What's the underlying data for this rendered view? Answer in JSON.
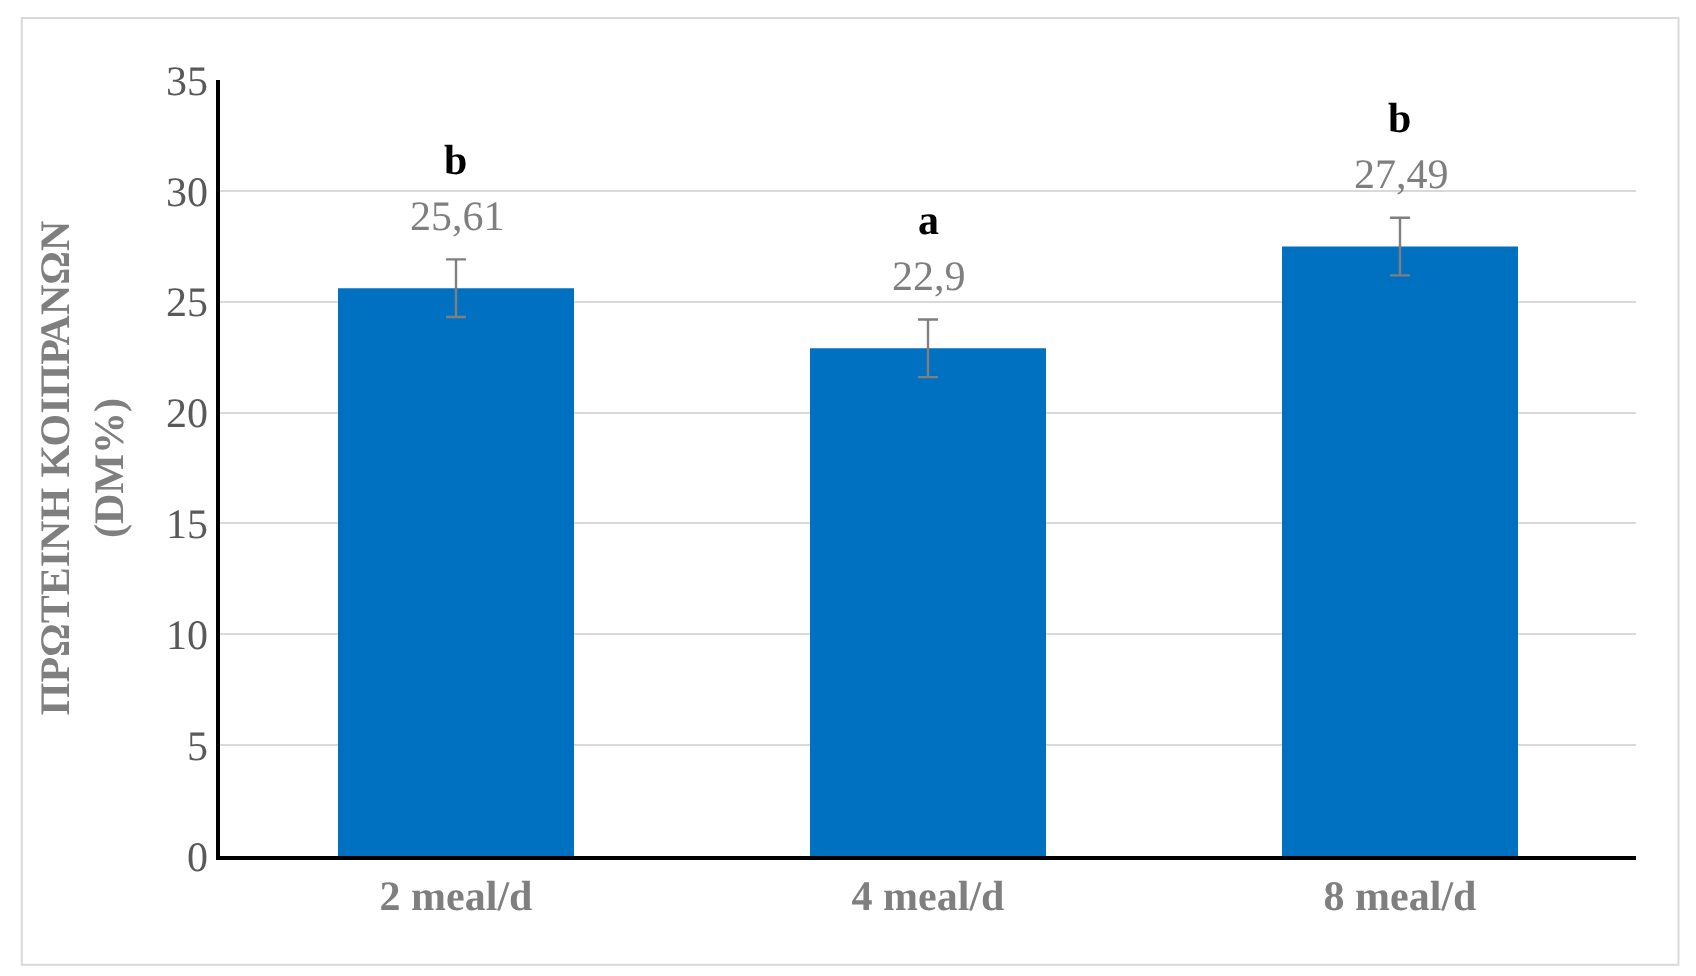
{
  "chart_data": {
    "type": "bar",
    "ylabel": "ΠΡΩΤΕΙΝΗ ΚΟΙΠΡΑΝΩΝ\n(DM%)",
    "categories": [
      "2 meal/d",
      "4 meal/d",
      "8 meal/d"
    ],
    "values": [
      25.61,
      22.9,
      27.49
    ],
    "color": "#0070c0",
    "errors": [
      1.3,
      1.3,
      1.3
    ],
    "value_labels": [
      "25,61",
      "22,9",
      "27,49"
    ],
    "annotations": [
      "b",
      "a",
      "b"
    ],
    "ylim": [
      0,
      35
    ],
    "yticks": [
      0,
      5,
      10,
      15,
      20,
      25,
      30,
      35
    ],
    "grid": "y",
    "legend": false
  }
}
